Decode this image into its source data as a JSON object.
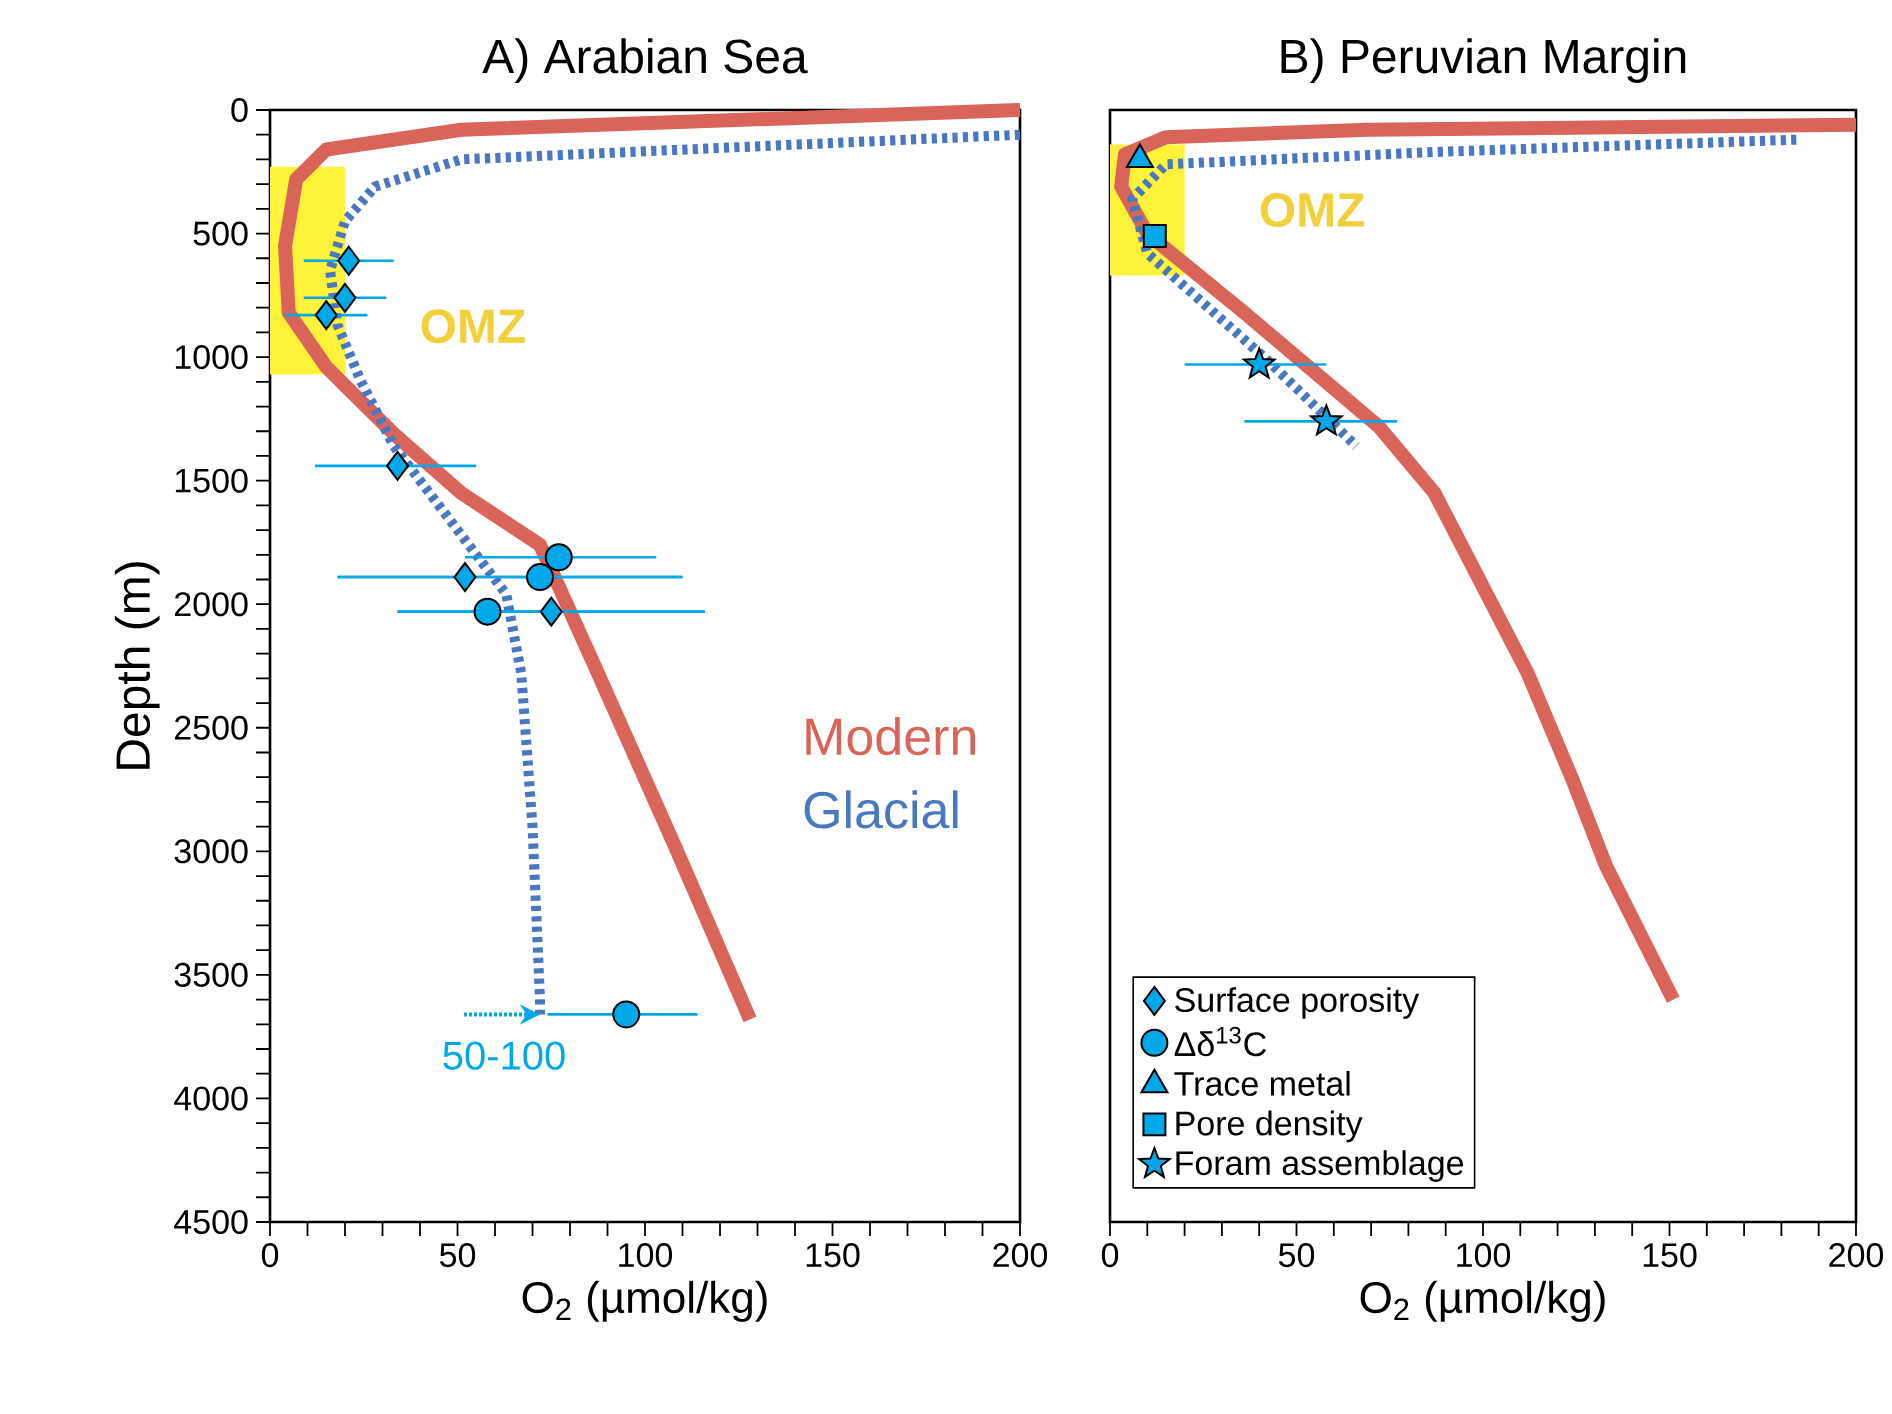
{
  "chart_data": [
    {
      "type": "line",
      "title": "A) Arabian Sea",
      "xlabel": "O$_{2}$ (µmol/kg)",
      "ylabel": "Depth (m)",
      "xlim": [
        0,
        200
      ],
      "xticks": [
        0,
        50,
        100,
        150,
        200
      ],
      "ylim": [
        4500,
        0
      ],
      "yticks": [
        0,
        500,
        1000,
        1500,
        2000,
        2500,
        3000,
        3500,
        4000,
        4500
      ],
      "legend": false,
      "bands": [
        {
          "axis": "y",
          "from": 230,
          "to": 1070,
          "label": "OMZ",
          "color": "#fff23a"
        }
      ],
      "annotations": [
        {
          "text": "50-100",
          "x": 72,
          "y": 3660
        }
      ],
      "series": [
        {
          "name": "Modern",
          "color": "#d9645a",
          "line_style": "solid",
          "x": [
            200,
            51,
            15,
            7,
            4,
            5,
            15,
            33,
            51,
            72,
            86,
            108,
            128
          ],
          "values": [
            0,
            80,
            160,
            280,
            550,
            820,
            1040,
            1310,
            1550,
            1760,
            2230,
            2980,
            3680
          ]
        },
        {
          "name": "Glacial",
          "color": "#4a78c0",
          "line_style": "dotted",
          "x": [
            200,
            51,
            28,
            20,
            16,
            18,
            24,
            33,
            51,
            63,
            67,
            70,
            72,
            72
          ],
          "values": [
            100,
            200,
            310,
            450,
            650,
            870,
            1090,
            1360,
            1720,
            1960,
            2280,
            2900,
            3600,
            3660
          ]
        },
        {
          "type": "scatter",
          "color": "#00a8e8",
          "marker": "diamond",
          "x": [
            21,
            20,
            15,
            34,
            52,
            75
          ],
          "values": [
            610,
            760,
            830,
            1440,
            1890,
            2030
          ],
          "xerrors": [
            [
              9,
              33
            ],
            [
              9,
              31
            ],
            [
              4,
              26
            ],
            [
              12,
              55
            ],
            [
              18,
              110
            ],
            [
              34,
              116
            ]
          ]
        },
        {
          "type": "scatter",
          "color": "#00a8e8",
          "marker": "circle",
          "x": [
            77,
            72,
            58,
            95
          ],
          "values": [
            1810,
            1890,
            2030,
            3660
          ],
          "xerrors": [
            [
              52,
              103
            ],
            [
              18,
              110
            ],
            [
              34,
              116
            ],
            [
              74,
              114
            ]
          ]
        }
      ]
    },
    {
      "type": "line",
      "title": "B) Peruvian Margin",
      "xlabel": "O$_{2}$ (µmol/kg)",
      "xlim": [
        0,
        200
      ],
      "xticks": [
        0,
        50,
        100,
        150,
        200
      ],
      "ylim": [
        4500,
        0
      ],
      "yticks": [
        0,
        500,
        1000,
        1500,
        2000,
        2500,
        3000,
        3500,
        4000,
        4500
      ],
      "tick_labels": "x",
      "legend": "bottom left",
      "bands": [
        {
          "axis": "y",
          "from": 140,
          "to": 670,
          "label": "OMZ",
          "color": "#fff23a"
        }
      ],
      "series": [
        {
          "color": "#d9645a",
          "line_style": "solid",
          "x": [
            200,
            69,
            15,
            4,
            3,
            10,
            36,
            72,
            87,
            112,
            124,
            133,
            151
          ],
          "values": [
            60,
            80,
            110,
            180,
            310,
            500,
            820,
            1280,
            1550,
            2280,
            2710,
            3060,
            3600
          ]
        },
        {
          "color": "#4a78c0",
          "line_style": "dotted",
          "x": [
            184,
            87,
            15,
            6,
            10,
            42,
            66
          ],
          "values": [
            120,
            170,
            220,
            360,
            580,
            1010,
            1360
          ]
        },
        {
          "name": "Surface porosity",
          "type": "scatter",
          "color": "#00a8e8",
          "marker": "diamond"
        },
        {
          "name": "Δδ$^{13}$C",
          "type": "scatter",
          "color": "#00a8e8",
          "marker": "circle"
        },
        {
          "name": "Trace metal",
          "type": "scatter",
          "color": "#00a8e8",
          "marker": "triangle",
          "x": [
            8
          ],
          "values": [
            200
          ]
        },
        {
          "name": "Pore density",
          "type": "scatter",
          "color": "#00a8e8",
          "marker": "square",
          "x": [
            12
          ],
          "values": [
            510
          ]
        },
        {
          "name": "Foram assemblage",
          "type": "scatter",
          "color": "#00a8e8",
          "marker": "star",
          "x": [
            40,
            58
          ],
          "values": [
            1030,
            1260
          ],
          "xerrors": [
            [
              20,
              58
            ],
            [
              36,
              77
            ]
          ]
        }
      ]
    }
  ]
}
